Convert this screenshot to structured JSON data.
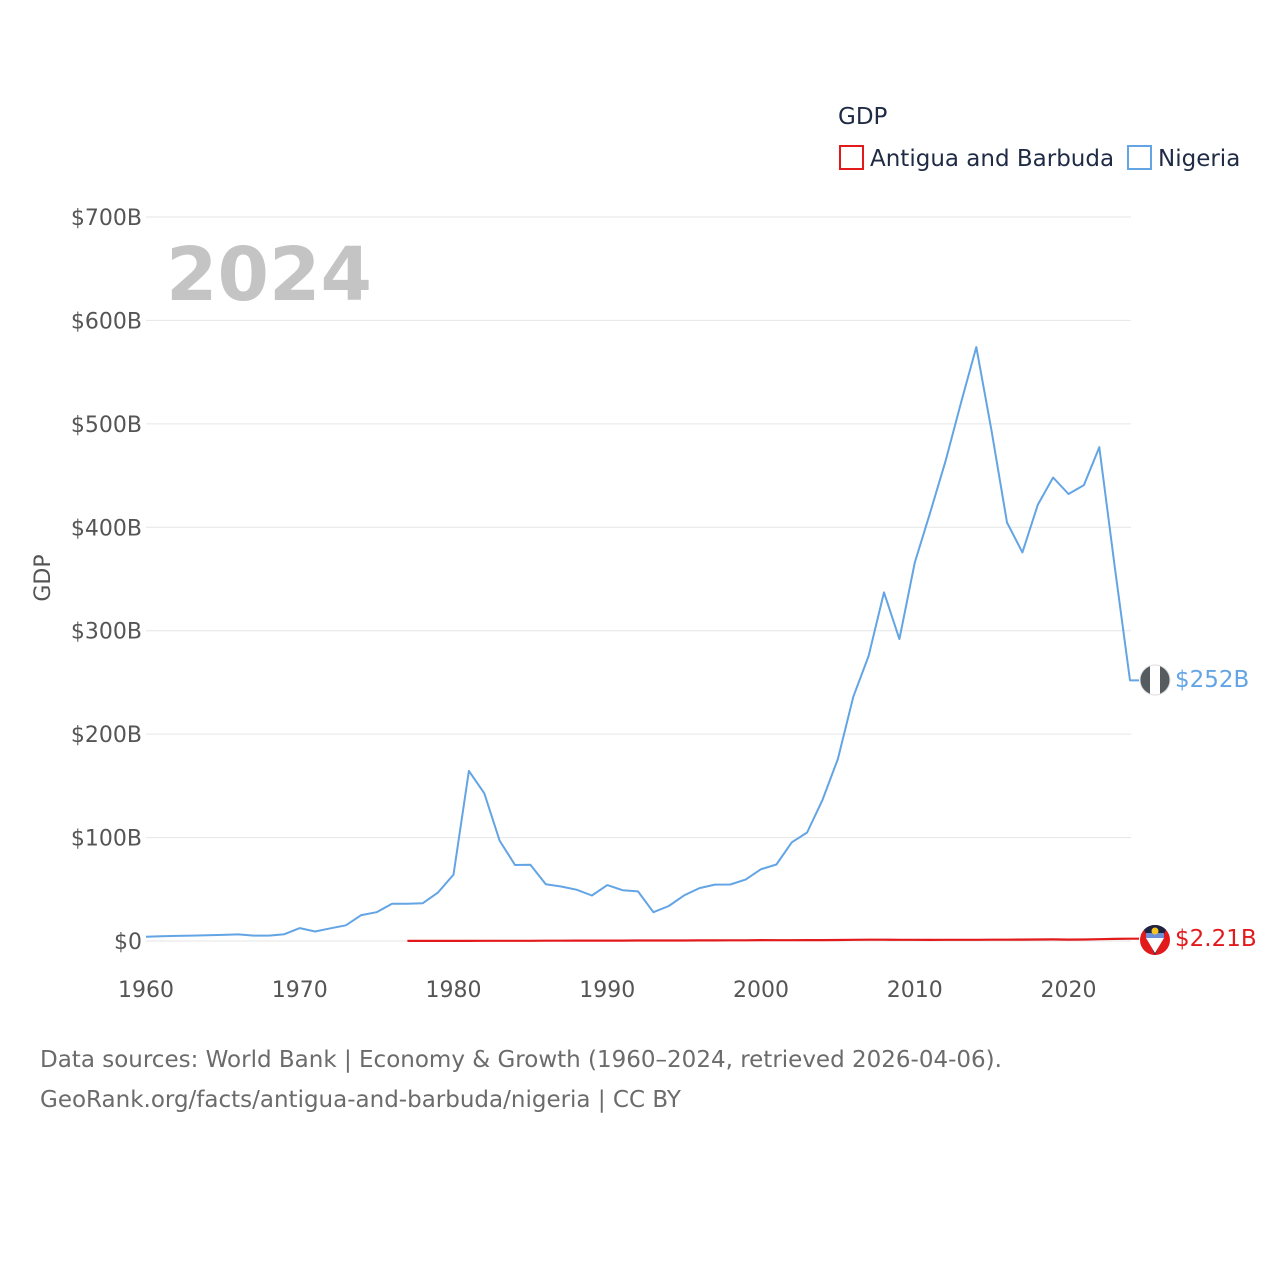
{
  "chart_data": {
    "type": "line",
    "year_watermark": "2024",
    "ylabel": "GDP",
    "xlabel": "",
    "ylim": [
      0,
      700
    ],
    "xlim": [
      1960,
      2024
    ],
    "x_ticks": [
      1960,
      1970,
      1980,
      1990,
      2000,
      2010,
      2020
    ],
    "y_ticks": [
      {
        "value": 0,
        "label": "$0"
      },
      {
        "value": 100,
        "label": "$100B"
      },
      {
        "value": 200,
        "label": "$200B"
      },
      {
        "value": 300,
        "label": "$300B"
      },
      {
        "value": 400,
        "label": "$400B"
      },
      {
        "value": 500,
        "label": "$500B"
      },
      {
        "value": 600,
        "label": "$600B"
      },
      {
        "value": 700,
        "label": "$700B"
      }
    ],
    "legend": {
      "title": "GDP",
      "placement": "top-right",
      "entries": [
        "Antigua and Barbuda",
        "Nigeria"
      ]
    },
    "units": "billions USD",
    "series": [
      {
        "name": "Antigua and Barbuda",
        "color": "#e31a1c",
        "end_label": "$2.21B",
        "x": [
          1977,
          1978,
          1979,
          1980,
          1981,
          1982,
          1983,
          1984,
          1985,
          1986,
          1987,
          1988,
          1989,
          1990,
          1991,
          1992,
          1993,
          1994,
          1995,
          1996,
          1997,
          1998,
          1999,
          2000,
          2001,
          2002,
          2003,
          2004,
          2005,
          2006,
          2007,
          2008,
          2009,
          2010,
          2011,
          2012,
          2013,
          2014,
          2015,
          2016,
          2017,
          2018,
          2019,
          2020,
          2021,
          2022,
          2023,
          2024
        ],
        "values": [
          0.08,
          0.09,
          0.1,
          0.12,
          0.14,
          0.15,
          0.17,
          0.19,
          0.22,
          0.25,
          0.29,
          0.34,
          0.38,
          0.41,
          0.43,
          0.45,
          0.48,
          0.51,
          0.53,
          0.57,
          0.6,
          0.64,
          0.68,
          0.83,
          0.8,
          0.81,
          0.85,
          0.91,
          1.0,
          1.12,
          1.24,
          1.29,
          1.16,
          1.14,
          1.09,
          1.14,
          1.12,
          1.18,
          1.21,
          1.27,
          1.33,
          1.43,
          1.56,
          1.36,
          1.47,
          1.77,
          2.03,
          2.21
        ]
      },
      {
        "name": "Nigeria",
        "color": "#63a4e4",
        "end_label": "$252B",
        "x": [
          1960,
          1961,
          1962,
          1963,
          1964,
          1965,
          1966,
          1967,
          1968,
          1969,
          1970,
          1971,
          1972,
          1973,
          1974,
          1975,
          1976,
          1977,
          1978,
          1979,
          1980,
          1981,
          1982,
          1983,
          1984,
          1985,
          1986,
          1987,
          1988,
          1989,
          1990,
          1991,
          1992,
          1993,
          1994,
          1995,
          1996,
          1997,
          1998,
          1999,
          2000,
          2001,
          2002,
          2003,
          2004,
          2005,
          2006,
          2007,
          2008,
          2009,
          2010,
          2011,
          2012,
          2013,
          2014,
          2015,
          2016,
          2017,
          2018,
          2019,
          2020,
          2021,
          2022,
          2023,
          2024
        ],
        "values": [
          4.2,
          4.5,
          4.9,
          5.2,
          5.6,
          5.9,
          6.4,
          5.2,
          5.2,
          6.6,
          12.5,
          9.2,
          12.3,
          15.2,
          25.0,
          27.8,
          36.0,
          36.0,
          36.5,
          47.0,
          64.2,
          164.5,
          142.8,
          97.1,
          73.5,
          73.7,
          54.8,
          52.7,
          49.6,
          44.0,
          54.0,
          49.1,
          48.0,
          27.8,
          33.8,
          44.1,
          51.1,
          54.5,
          54.6,
          59.4,
          69.4,
          74.0,
          95.4,
          104.9,
          136.4,
          176.1,
          236.1,
          275.6,
          337.0,
          291.9,
          366.0,
          414.0,
          463.9,
          520.1,
          574.2,
          493.0,
          404.6,
          375.7,
          421.7,
          448.1,
          432.2,
          440.8,
          477.4,
          362.8,
          252.0
        ]
      }
    ]
  },
  "footer": {
    "line1": "Data sources: World Bank | Economy & Growth (1960–2024, retrieved 2026-04-06).",
    "line2": "GeoRank.org/facts/antigua-and-barbuda/nigeria | CC BY"
  }
}
